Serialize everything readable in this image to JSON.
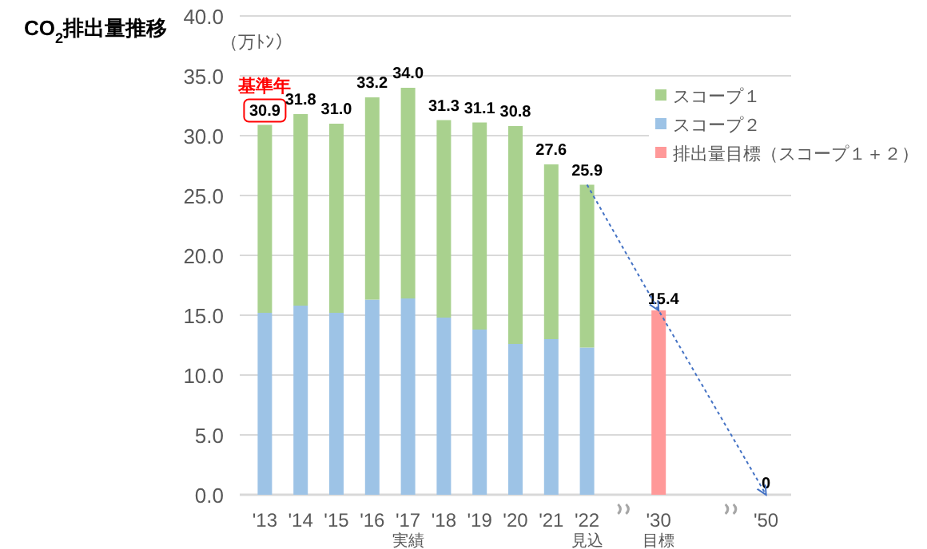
{
  "chart_data": {
    "type": "bar",
    "title": "CO$_{2}$排出量推移",
    "ylabel": "（万ﾄﾝ）",
    "categories": [
      "'13",
      "'14",
      "'15",
      "'16",
      "'17",
      "'18",
      "'19",
      "'20",
      "'21",
      "'22",
      null,
      "'30",
      null,
      null,
      "'50"
    ],
    "stacked": true,
    "ylim": [
      0,
      40
    ],
    "yticks": [
      {
        "value": 0,
        "label": "0.0"
      },
      {
        "value": 5,
        "label": "5.0"
      },
      {
        "value": 10,
        "label": "10.0"
      },
      {
        "value": 15,
        "label": "15.0"
      },
      {
        "value": 20,
        "label": "20.0"
      },
      {
        "value": 25,
        "label": "25.0"
      },
      {
        "value": 30,
        "label": "30.0"
      },
      {
        "value": 35,
        "label": "35.0"
      },
      {
        "value": 40,
        "label": "40.0"
      }
    ],
    "grid": "y",
    "legend": "top right",
    "series": [
      {
        "name": "スコープ２",
        "color": "#9dc3e6",
        "values": [
          15.2,
          15.8,
          15.2,
          16.3,
          16.4,
          14.8,
          13.8,
          12.6,
          13.0,
          12.3,
          null,
          null,
          null,
          null,
          null
        ]
      },
      {
        "name": "スコープ１",
        "color": "#a9d18e",
        "values": [
          15.7,
          16.0,
          15.8,
          16.9,
          17.6,
          16.5,
          17.3,
          18.2,
          14.6,
          13.6,
          null,
          null,
          null,
          null,
          null
        ]
      },
      {
        "name": "排出量目標（スコープ１＋２）",
        "color": "#ff9999",
        "values": [
          null,
          null,
          null,
          null,
          null,
          null,
          null,
          null,
          null,
          null,
          null,
          15.4,
          null,
          null,
          0
        ],
        "value_labels": [
          null,
          null,
          null,
          null,
          null,
          null,
          null,
          null,
          null,
          null,
          null,
          "15.4",
          null,
          null,
          "0"
        ]
      },
      {
        "type": "line",
        "color": "#4472c4",
        "line_style": "dotted",
        "x": [
          "'22",
          "'30",
          "'50"
        ],
        "values": [
          25.9,
          15.4,
          0
        ]
      }
    ],
    "totals": [
      "30.9",
      "31.8",
      "31.0",
      "33.2",
      "34.0",
      "31.3",
      "31.1",
      "30.8",
      "27.6",
      "25.9",
      null,
      null,
      null,
      null,
      null
    ],
    "annotations": [
      {
        "text": "基準年",
        "x": "'13",
        "y": 30.9
      },
      "実績",
      "見込",
      "目標"
    ]
  }
}
